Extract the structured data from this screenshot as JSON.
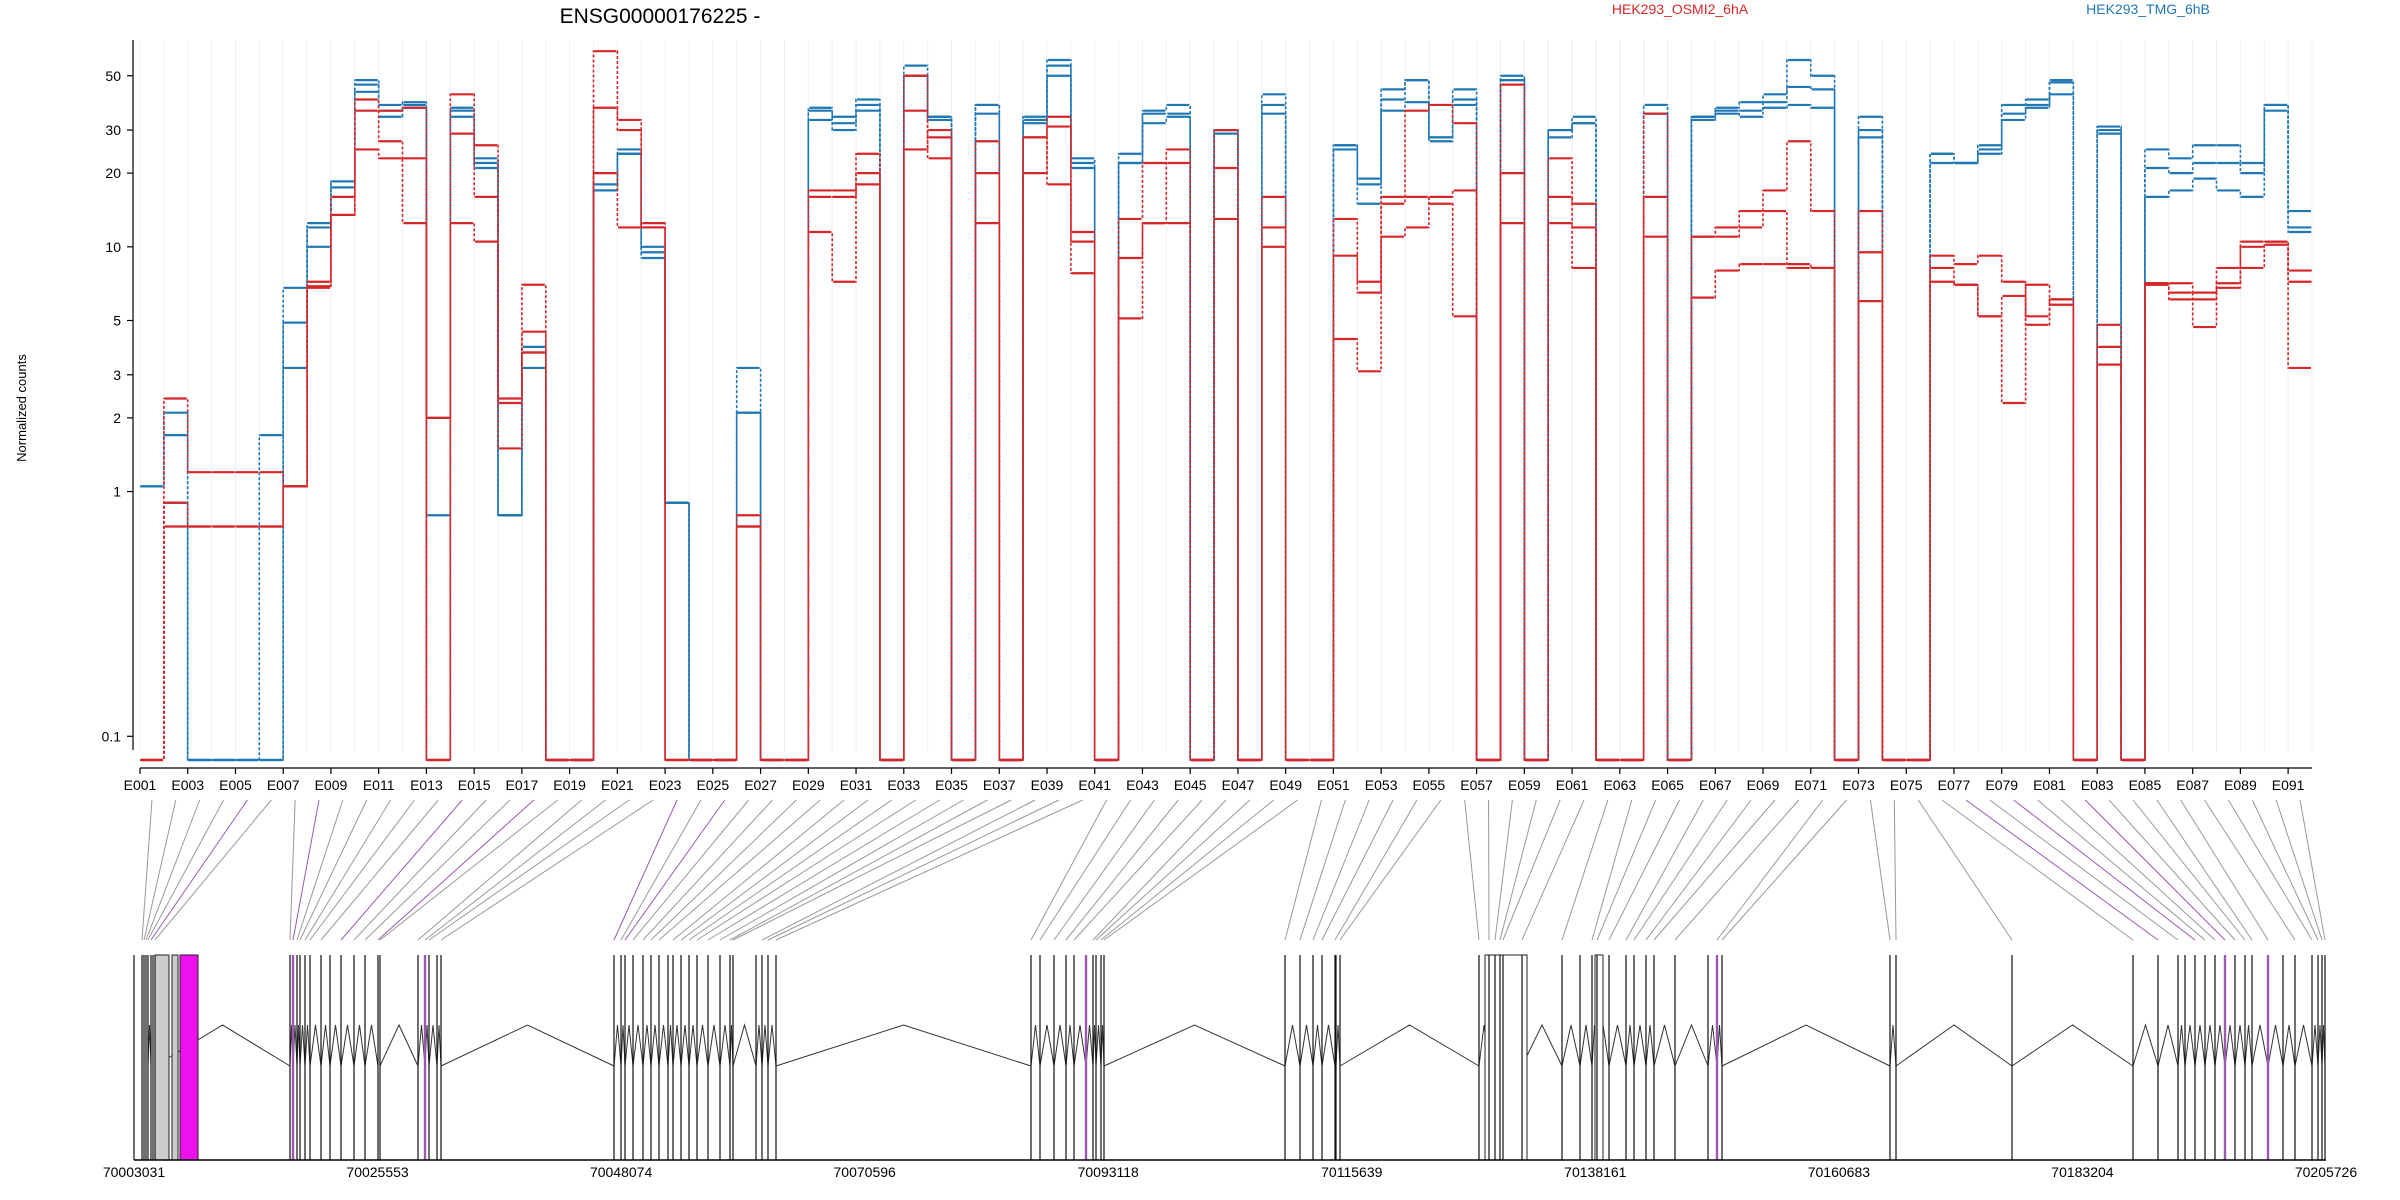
{
  "title": "ENSG00000176225 -",
  "legend": [
    {
      "label": "HEK293_OSMI2_6hA",
      "color": "#d62728"
    },
    {
      "label": "HEK293_TMG_6hB",
      "color": "#1f77b4"
    }
  ],
  "colors": {
    "red": "#d62728",
    "blue": "#1f77b4",
    "purple": "#9b59b6",
    "magenta": "#ee11ee",
    "grey": "#999999"
  },
  "chart_data": {
    "type": "line",
    "title": "ENSG00000176225 -",
    "ylabel": "Normalized counts",
    "yscale": "log",
    "ylim": [
      0.08,
      70
    ],
    "yticks": [
      0.1,
      1,
      2,
      3,
      5,
      10,
      20,
      30,
      50
    ],
    "ytick_labels": [
      "0.1",
      "1",
      "2",
      "3",
      "5",
      "10",
      "20",
      "30",
      "50"
    ],
    "exon_count": 91,
    "xtick_labels": [
      "E001",
      "E003",
      "E005",
      "E007",
      "E009",
      "E011",
      "E013",
      "E015",
      "E017",
      "E019",
      "E021",
      "E023",
      "E025",
      "E027",
      "E029",
      "E031",
      "E033",
      "E035",
      "E037",
      "E039",
      "E041",
      "E043",
      "E045",
      "E047",
      "E049",
      "E051",
      "E053",
      "E055",
      "E057",
      "E059",
      "E061",
      "E063",
      "E065",
      "E067",
      "E069",
      "E071",
      "E073",
      "E075",
      "E077",
      "E079",
      "E081",
      "E083",
      "E085",
      "E087",
      "E089",
      "E091"
    ],
    "genomic_ticks": [
      "70003031",
      "70025553",
      "70048074",
      "70070596",
      "70093118",
      "70115639",
      "70138161",
      "70160683",
      "70183204",
      "70205726"
    ],
    "genomic_range": [
      70003031,
      70205726
    ],
    "series": [
      {
        "name": "HEK293_TMG_6hB",
        "color": "#1f77b4",
        "values": [
          1.05,
          2.1,
          0.08,
          0.08,
          0.08,
          0.08,
          3.2,
          12.5,
          18.5,
          46,
          38,
          38,
          0.8,
          37,
          21,
          0.8,
          3.7,
          0.08,
          0.08,
          18,
          25,
          10,
          0.9,
          0.08,
          0.08,
          2.1,
          0.08,
          0.08,
          37,
          34,
          40,
          0.08,
          50,
          34,
          0.08,
          38,
          0.08,
          34,
          58,
          22,
          0.08,
          24,
          35,
          35,
          0.08,
          30,
          0.08,
          38,
          0.08,
          0.08,
          26,
          19,
          40,
          48,
          28,
          40,
          0.08,
          50,
          0.08,
          30,
          34,
          0.08,
          0.08,
          38,
          0.08,
          34,
          37,
          39,
          42,
          58,
          50,
          0.08,
          34,
          0.08,
          0.08,
          24,
          22,
          26,
          35,
          38,
          47,
          0.08,
          31,
          0.08,
          25,
          23,
          26,
          26,
          22,
          38,
          12
        ]
      },
      {
        "name": "HEK293_TMG_6hB",
        "color": "#1f77b4",
        "values": [
          1.05,
          1.7,
          0.08,
          0.08,
          0.08,
          1.7,
          4.9,
          10,
          17.5,
          48,
          34,
          37,
          2.0,
          36,
          23,
          0.8,
          3.9,
          0.08,
          0.08,
          17,
          24,
          9.5,
          0.9,
          0.08,
          0.08,
          2.1,
          0.08,
          0.08,
          36,
          30,
          38,
          0.08,
          50,
          34,
          0.08,
          35,
          0.08,
          32,
          50,
          23,
          0.08,
          22,
          32,
          34,
          0.08,
          30,
          0.08,
          35,
          0.08,
          0.08,
          25,
          15,
          36,
          39,
          27,
          38,
          0.08,
          48,
          0.08,
          28,
          32,
          0.08,
          0.08,
          35,
          0.08,
          34,
          36,
          36,
          39,
          45,
          44,
          0.08,
          30,
          0.08,
          0.08,
          22,
          22,
          24,
          33,
          37,
          42,
          0.08,
          29,
          0.08,
          21,
          20,
          22,
          22,
          20,
          36,
          11.5
        ]
      },
      {
        "name": "HEK293_TMG_6hB",
        "color": "#1f77b4",
        "values": [
          0.08,
          0.9,
          0.08,
          0.08,
          0.08,
          0.08,
          6.8,
          12,
          18.5,
          43,
          36,
          39,
          0.08,
          34,
          22,
          0.8,
          3.2,
          0.08,
          0.08,
          17,
          24,
          9,
          0.9,
          0.08,
          0.08,
          3.2,
          0.08,
          0.08,
          33,
          32,
          36,
          0.08,
          55,
          33,
          0.08,
          38,
          0.08,
          33,
          55,
          21,
          0.08,
          22,
          36,
          38,
          0.08,
          29,
          0.08,
          42,
          0.08,
          0.08,
          26,
          18,
          44,
          48,
          28,
          44,
          0.08,
          48,
          0.08,
          30,
          32,
          0.08,
          0.08,
          38,
          0.08,
          33,
          35,
          34,
          37,
          38,
          37,
          0.08,
          28,
          0.08,
          0.08,
          24,
          22,
          25,
          38,
          40,
          48,
          0.08,
          30,
          0.08,
          16,
          17,
          19,
          17,
          16,
          38,
          14
        ]
      },
      {
        "name": "HEK293_OSMI2_6hA",
        "color": "#d62728",
        "values": [
          0.08,
          2.4,
          1.2,
          1.2,
          1.2,
          1.2,
          1.05,
          6.8,
          13.5,
          36,
          36,
          37,
          2.0,
          29,
          16,
          2.4,
          3.7,
          0.08,
          0.08,
          37,
          30,
          12,
          0.08,
          0.08,
          0.08,
          0.8,
          0.08,
          0.08,
          17,
          17,
          24,
          0.08,
          25,
          30,
          0.08,
          27,
          0.08,
          28,
          34,
          11.5,
          0.08,
          13,
          22,
          22,
          0.08,
          30,
          0.08,
          16,
          0.08,
          0.08,
          9.2,
          7.2,
          15,
          36,
          38,
          32,
          0.08,
          46,
          0.08,
          23,
          15,
          0.08,
          0.08,
          11,
          0.08,
          11,
          12,
          14,
          17,
          27,
          14,
          0.08,
          14,
          0.08,
          0.08,
          9.2,
          8.5,
          9.2,
          7.2,
          5.2,
          6.1,
          0.08,
          4.8,
          0.08,
          7.1,
          7.1,
          6.5,
          8.2,
          10.5,
          10.5,
          8
        ]
      },
      {
        "name": "HEK293_OSMI2_6hA",
        "color": "#d62728",
        "values": [
          0.08,
          0.72,
          0.72,
          0.72,
          0.72,
          0.72,
          1.05,
          7.2,
          16,
          40,
          27,
          23,
          0.08,
          42,
          26,
          2.3,
          7.0,
          0.08,
          0.08,
          63,
          33,
          12,
          0.08,
          0.08,
          0.08,
          0.72,
          0.08,
          0.08,
          11.5,
          7.2,
          18,
          0.08,
          50,
          28,
          0.08,
          12.5,
          0.08,
          20,
          31,
          10.5,
          0.08,
          9,
          12.5,
          25,
          0.08,
          21,
          0.08,
          12,
          0.08,
          0.08,
          13,
          6.5,
          11,
          12,
          16,
          17,
          0.08,
          20,
          0.08,
          16,
          12,
          0.08,
          0.08,
          35,
          0.08,
          6.2,
          8,
          8.5,
          8.5,
          8.5,
          8.2,
          0.08,
          6,
          0.08,
          0.08,
          7.2,
          7.0,
          5.2,
          2.3,
          7.0,
          5.8,
          0.08,
          3.3,
          0.08,
          7.1,
          6.5,
          4.7,
          6.8,
          10,
          10.2,
          3.2
        ]
      },
      {
        "name": "HEK293_OSMI2_6hA",
        "color": "#d62728",
        "values": [
          0.08,
          0.9,
          0.72,
          0.72,
          0.72,
          0.72,
          1.05,
          6.9,
          13.5,
          25,
          23,
          12.5,
          0.08,
          12.5,
          10.5,
          1.5,
          4.5,
          0.08,
          0.08,
          20,
          12,
          12.5,
          0.08,
          0.08,
          0.08,
          0.72,
          0.08,
          0.08,
          16,
          16,
          20,
          0.08,
          36,
          23,
          0.08,
          20,
          0.08,
          28,
          18,
          7.8,
          0.08,
          5.1,
          12.5,
          12.5,
          0.08,
          13,
          0.08,
          10,
          0.08,
          0.08,
          4.2,
          3.1,
          16,
          16,
          15,
          5.2,
          0.08,
          12.5,
          0.08,
          12.5,
          8.2,
          0.08,
          0.08,
          16,
          0.08,
          11,
          11,
          12,
          14,
          8.2,
          8.2,
          0.08,
          9.5,
          0.08,
          0.08,
          8.2,
          7.0,
          5.2,
          6.3,
          4.8,
          6.1,
          0.08,
          3.9,
          0.08,
          7.0,
          6.1,
          6.1,
          7.1,
          8.2,
          10.5,
          7.2
        ]
      }
    ]
  }
}
